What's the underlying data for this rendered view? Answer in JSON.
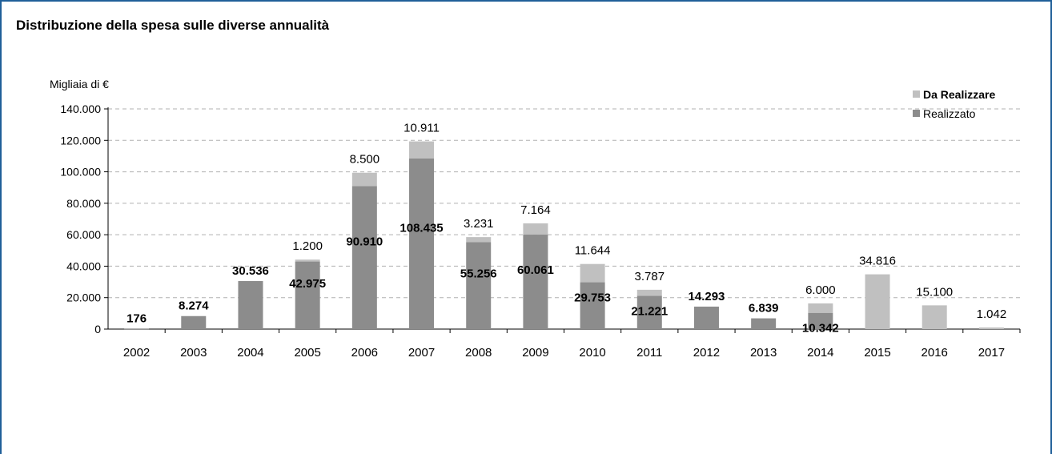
{
  "title": "Distribuzione della spesa sulle diverse annualità",
  "chart_data": {
    "type": "bar",
    "stacked": true,
    "title": "Distribuzione della spesa sulle diverse annualità",
    "ylabel": "Migliaia di €",
    "xlabel": "",
    "ylim": [
      0,
      140000
    ],
    "yticks": [
      0,
      20000,
      40000,
      60000,
      80000,
      100000,
      120000,
      140000
    ],
    "ytick_labels": [
      "0",
      "20.000",
      "40.000",
      "60.000",
      "80.000",
      "100.000",
      "120.000",
      "140.000"
    ],
    "grid": "horizontal dashed",
    "legend_position": "top-right",
    "categories": [
      "2002",
      "2003",
      "2004",
      "2005",
      "2006",
      "2007",
      "2008",
      "2009",
      "2010",
      "2011",
      "2012",
      "2013",
      "2014",
      "2015",
      "2016",
      "2017"
    ],
    "series": [
      {
        "name": "Realizzato",
        "color": "#8c8c8c",
        "values": [
          176,
          8274,
          30536,
          42975,
          90910,
          108435,
          55256,
          60061,
          29753,
          21221,
          14293,
          6839,
          10342,
          0,
          0,
          0
        ],
        "labels": [
          "176",
          "8.274",
          "30.536",
          "42.975",
          "90.910",
          "108.435",
          "55.256",
          "60.061",
          "29.753",
          "21.221",
          "14.293",
          "6.839",
          "10.342",
          "",
          "",
          ""
        ]
      },
      {
        "name": "Da Realizzare",
        "color": "#c0c0c0",
        "values": [
          0,
          0,
          0,
          1200,
          8500,
          10911,
          3231,
          7164,
          11644,
          3787,
          0,
          0,
          6000,
          34816,
          15100,
          1042
        ],
        "labels": [
          "",
          "",
          "",
          "1.200",
          "8.500",
          "10.911",
          "3.231",
          "7.164",
          "11.644",
          "3.787",
          "",
          "",
          "6.000",
          "34.816",
          "15.100",
          "1.042"
        ]
      }
    ],
    "legend": [
      {
        "name": "Da Realizzare",
        "color": "#c0c0c0",
        "bold": true
      },
      {
        "name": "Realizzato",
        "color": "#8c8c8c",
        "bold": false
      }
    ]
  }
}
